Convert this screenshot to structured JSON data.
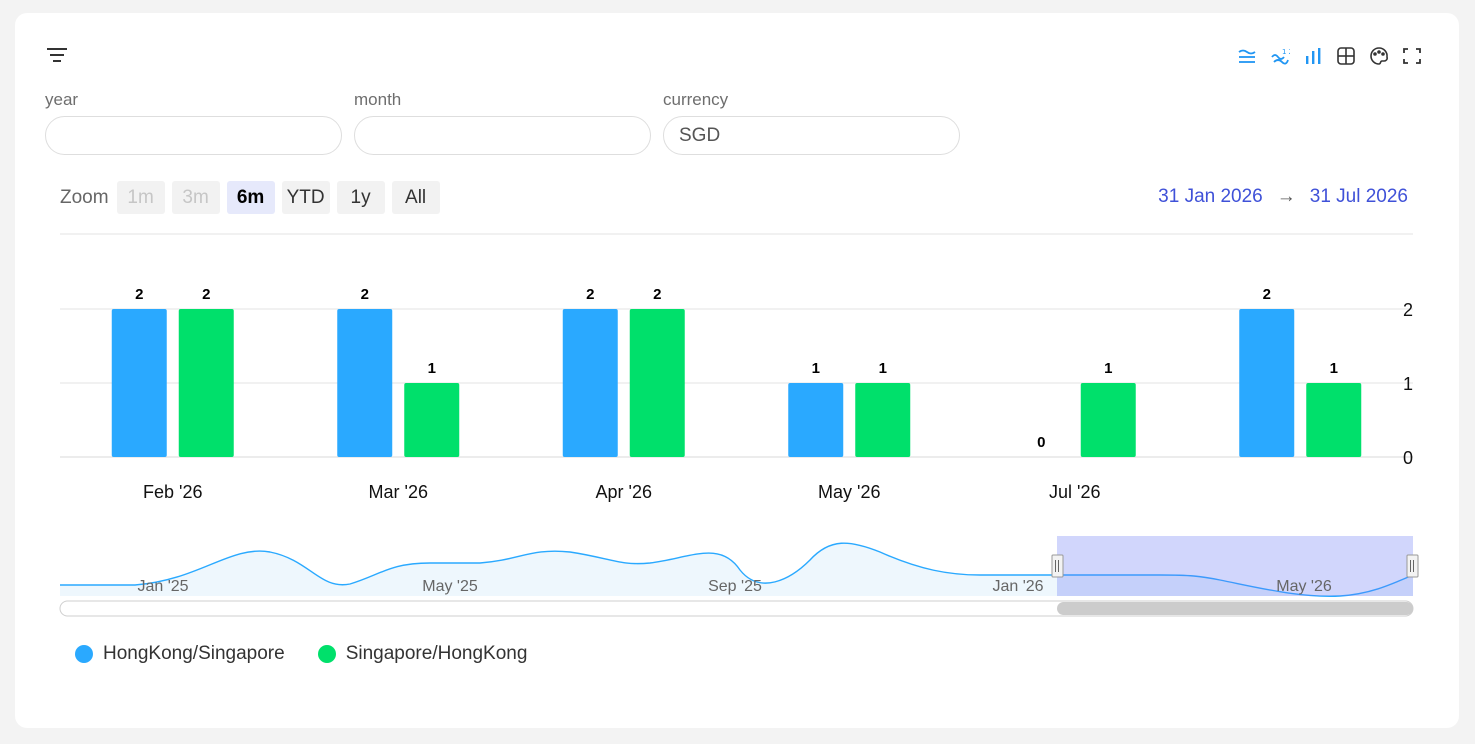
{
  "filters": [
    {
      "label": "year",
      "value": ""
    },
    {
      "label": "month",
      "value": ""
    },
    {
      "label": "currency",
      "value": "SGD"
    }
  ],
  "toolbar": {
    "icons": [
      "stacked-lines-icon",
      "smooth-line-icon",
      "bar-chart-icon",
      "grid-icon",
      "palette-icon",
      "fullscreen-icon"
    ],
    "accent": "#2196f3"
  },
  "zoom": {
    "label": "Zoom",
    "buttons": [
      {
        "label": "1m",
        "state": "disabled"
      },
      {
        "label": "3m",
        "state": "disabled"
      },
      {
        "label": "6m",
        "state": "active"
      },
      {
        "label": "YTD",
        "state": "normal"
      },
      {
        "label": "1y",
        "state": "normal"
      },
      {
        "label": "All",
        "state": "normal"
      }
    ]
  },
  "range": {
    "from": "31 Jan 2026",
    "arrow": "→",
    "to": "31 Jul 2026"
  },
  "chart_data": {
    "type": "bar",
    "categories": [
      "Feb '26",
      "Mar '26",
      "Apr '26",
      "May '26",
      "Jul '26",
      ""
    ],
    "series": [
      {
        "name": "HongKong/Singapore",
        "color": "#2aa9ff",
        "values": [
          2,
          2,
          2,
          1,
          0,
          2
        ]
      },
      {
        "name": "Singapore/HongKong",
        "color": "#00e06b",
        "values": [
          2,
          1,
          2,
          1,
          1,
          1
        ]
      }
    ],
    "ylim": [
      0,
      2
    ],
    "yticks": [
      "0",
      "1",
      "2"
    ],
    "y_axis_side": "right",
    "grid": true,
    "legend": "bottom-left",
    "navigator": {
      "tick_labels": [
        "Jan '25",
        "May '25",
        "Sep '25",
        "Jan '26",
        "May '26"
      ],
      "selected_range": [
        "31 Jan 2026",
        "31 Jul 2026"
      ]
    }
  }
}
